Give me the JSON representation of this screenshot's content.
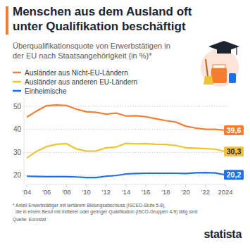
{
  "chart_data": {
    "type": "line",
    "title": "Menschen aus dem Ausland oft unter Qualifikation beschäftigt",
    "subtitle": "Überqualifikationsquote von Erwerbstätigen in der EU nach Staatsangehörigkeit (in %)*",
    "x": [
      2004,
      2005,
      2006,
      2007,
      2008,
      2009,
      2010,
      2011,
      2012,
      2013,
      2014,
      2015,
      2016,
      2017,
      2018,
      2019,
      2020,
      2021,
      2022,
      2023,
      2024
    ],
    "xlim": [
      2004,
      2024
    ],
    "xticks": [
      {
        "value": 2004,
        "label": "'04"
      },
      {
        "value": 2006,
        "label": "'06"
      },
      {
        "value": 2008,
        "label": "'08"
      },
      {
        "value": 2010,
        "label": "'10"
      },
      {
        "value": 2012,
        "label": "'12"
      },
      {
        "value": 2014,
        "label": "'14"
      },
      {
        "value": 2016,
        "label": "'16"
      },
      {
        "value": 2018,
        "label": "'18"
      },
      {
        "value": 2020,
        "label": "'20"
      },
      {
        "value": 2022,
        "label": "'22"
      },
      {
        "value": 2024,
        "label": "2024"
      }
    ],
    "ylim": [
      16,
      54
    ],
    "yticks": [
      20,
      30,
      40,
      50
    ],
    "grid": true,
    "legend": "top-left",
    "series": [
      {
        "name": "Ausländer aus Nicht-EU-Ländern",
        "color": "#f47d30",
        "values": [
          45.3,
          48.0,
          50.3,
          50.6,
          50.4,
          48.8,
          47.7,
          47.4,
          46.6,
          47.1,
          45.8,
          45.9,
          45.5,
          44.6,
          43.8,
          43.2,
          41.4,
          40.6,
          40.0,
          40.0,
          39.6
        ],
        "value_labels": [
          null,
          null,
          null,
          null,
          null,
          null,
          null,
          null,
          null,
          null,
          null,
          null,
          null,
          null,
          null,
          null,
          null,
          null,
          null,
          null,
          "39,6"
        ]
      },
      {
        "name": "Ausländer aus anderen EU-Ländern",
        "color": "#f2c330",
        "values": [
          27.5,
          30.5,
          32.5,
          33.5,
          33.8,
          31.5,
          30.5,
          30.6,
          32.0,
          32.3,
          33.9,
          33.7,
          33.8,
          33.5,
          33.4,
          33.0,
          32.0,
          31.8,
          31.6,
          31.4,
          30.3
        ],
        "value_labels": [
          null,
          null,
          null,
          null,
          null,
          null,
          null,
          null,
          null,
          null,
          null,
          null,
          null,
          null,
          null,
          null,
          null,
          null,
          null,
          null,
          "30,3"
        ]
      },
      {
        "name": "Einheimische",
        "color": "#1f6fe5",
        "values": [
          19.6,
          19.5,
          19.4,
          19.4,
          19.4,
          19.3,
          19.0,
          19.0,
          19.6,
          19.9,
          20.6,
          20.8,
          20.9,
          20.9,
          20.9,
          20.9,
          20.8,
          21.1,
          21.2,
          21.0,
          20.2
        ],
        "value_labels": [
          null,
          null,
          null,
          null,
          null,
          null,
          null,
          null,
          null,
          null,
          null,
          null,
          null,
          null,
          null,
          null,
          null,
          null,
          null,
          null,
          "20,2"
        ]
      }
    ],
    "footnote": [
      "* Anteil Erwerbstätiger mit tertiärem Bildungsabschluss (ISCED-Stufe 5-8),",
      "die in einem Beruf mit mittlerer oder geringer Qualifikation (ISCO-Gruppen 4-9) tätig sind"
    ],
    "source": "Quelle: Eurostat",
    "brand": "statista"
  }
}
